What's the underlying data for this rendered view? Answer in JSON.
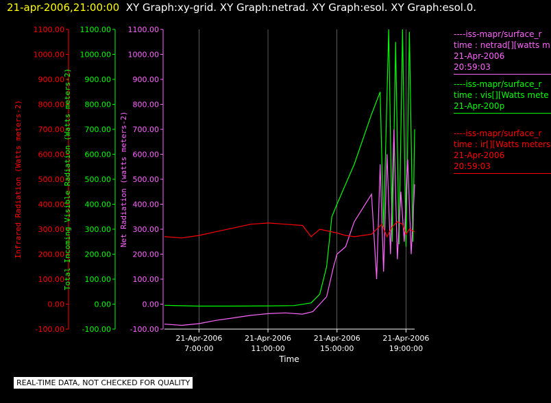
{
  "header": {
    "timestamp": "21-apr-2006,21:00:00",
    "graphs": "XY Graph:xy-grid.  XY Graph:netrad.  XY Graph:esol.  XY Graph:esol.0."
  },
  "footer": {
    "note": "REAL-TIME DATA, NOT CHECKED FOR QUALITY"
  },
  "legend": [
    {
      "color": "#ff66ff",
      "lines": [
        "----iss-mapr/surface_r",
        "time : netrad[][watts m",
        "21-Apr-2006",
        "20:59:03"
      ]
    },
    {
      "color": "#00ff00",
      "lines": [
        "----iss-mapr/surface_r",
        "time : vis[][Watts mete",
        "21-Apr-200p"
      ]
    },
    {
      "color": "#ff0000",
      "lines": [
        "----iss-mapr/surface_r",
        "time : ir[][Watts meters",
        "21-Apr-2006",
        "20:59:03"
      ]
    }
  ],
  "chart_data": {
    "type": "line",
    "xlabel": "Time",
    "x_ticks": [
      {
        "date": "21-Apr-2006",
        "time": "7:00:00",
        "hour": 7
      },
      {
        "date": "21-Apr-2006",
        "time": "11:00:00",
        "hour": 11
      },
      {
        "date": "21-Apr-2006",
        "time": "15:00:00",
        "hour": 15
      },
      {
        "date": "21-Apr-2006",
        "time": "19:00:00",
        "hour": 19
      }
    ],
    "xlim_hours": [
      5.0,
      19.5
    ],
    "grid": "vertical",
    "axes": [
      {
        "label": "Infrared Radiation (Watts meters-2)",
        "color": "#ff0000",
        "ylim": [
          -100,
          1100
        ],
        "ticks": [
          "-100.00",
          "0.00",
          "100.00",
          "200.00",
          "300.00",
          "400.00",
          "500.00",
          "600.00",
          "700.00",
          "800.00",
          "900.00",
          "1000.00",
          "1100.00"
        ]
      },
      {
        "label": "Total Incoming Visible Radiation (Watts meters-2)",
        "color": "#00ff00",
        "ylim": [
          -100,
          1100
        ],
        "ticks": [
          "-100.00",
          "0.00",
          "100.00",
          "200.00",
          "300.00",
          "400.00",
          "500.00",
          "600.00",
          "700.00",
          "800.00",
          "900.00",
          "1000.00",
          "1100.00"
        ]
      },
      {
        "label": "Net Radiation (watts meters-2)",
        "color": "#ff66ff",
        "ylim": [
          -100,
          1100
        ],
        "ticks": [
          "-100.00",
          "0.00",
          "100.00",
          "200.00",
          "300.00",
          "400.00",
          "500.00",
          "600.00",
          "700.00",
          "800.00",
          "900.00",
          "1000.00",
          "1100.00"
        ]
      }
    ],
    "series": [
      {
        "key": "vis",
        "color": "#00ff00",
        "x": [
          5.0,
          7.0,
          9.0,
          11.0,
          12.5,
          13.5,
          14.0,
          14.4,
          14.7,
          15.0,
          15.5,
          16.0,
          17.0,
          17.5,
          17.7,
          18.0,
          18.2,
          18.4,
          18.6,
          18.8,
          19.0,
          19.2,
          19.4,
          19.5
        ],
        "values": [
          -5,
          -8,
          -8,
          -7,
          -6,
          5,
          40,
          150,
          350,
          400,
          480,
          560,
          760,
          850,
          300,
          1100,
          250,
          1050,
          240,
          1100,
          230,
          1090,
          250,
          700
        ]
      },
      {
        "key": "netrad",
        "color": "#ff66ff",
        "x": [
          5.0,
          6.0,
          7.0,
          8.0,
          9.0,
          10.0,
          11.0,
          12.0,
          13.0,
          13.6,
          14.0,
          14.4,
          14.8,
          15.0,
          15.5,
          16.0,
          17.0,
          17.3,
          17.5,
          17.7,
          17.9,
          18.1,
          18.3,
          18.5,
          18.7,
          18.9,
          19.1,
          19.3,
          19.5
        ],
        "values": [
          -80,
          -85,
          -78,
          -65,
          -55,
          -45,
          -38,
          -35,
          -40,
          -30,
          0,
          30,
          150,
          200,
          230,
          330,
          440,
          100,
          560,
          130,
          600,
          200,
          700,
          180,
          450,
          250,
          580,
          200,
          480
        ]
      },
      {
        "key": "ir",
        "color": "#ff0000",
        "x": [
          5.0,
          6.0,
          7.0,
          8.0,
          9.0,
          10.0,
          11.0,
          12.0,
          13.0,
          13.5,
          14.0,
          15.0,
          15.5,
          16.0,
          16.5,
          17.0,
          17.3,
          17.6,
          17.9,
          18.2,
          18.5,
          18.8,
          19.0,
          19.2,
          19.5
        ],
        "values": [
          270,
          265,
          275,
          290,
          305,
          320,
          325,
          320,
          315,
          270,
          300,
          285,
          275,
          270,
          275,
          280,
          300,
          320,
          270,
          310,
          330,
          320,
          280,
          300,
          290
        ]
      }
    ]
  }
}
